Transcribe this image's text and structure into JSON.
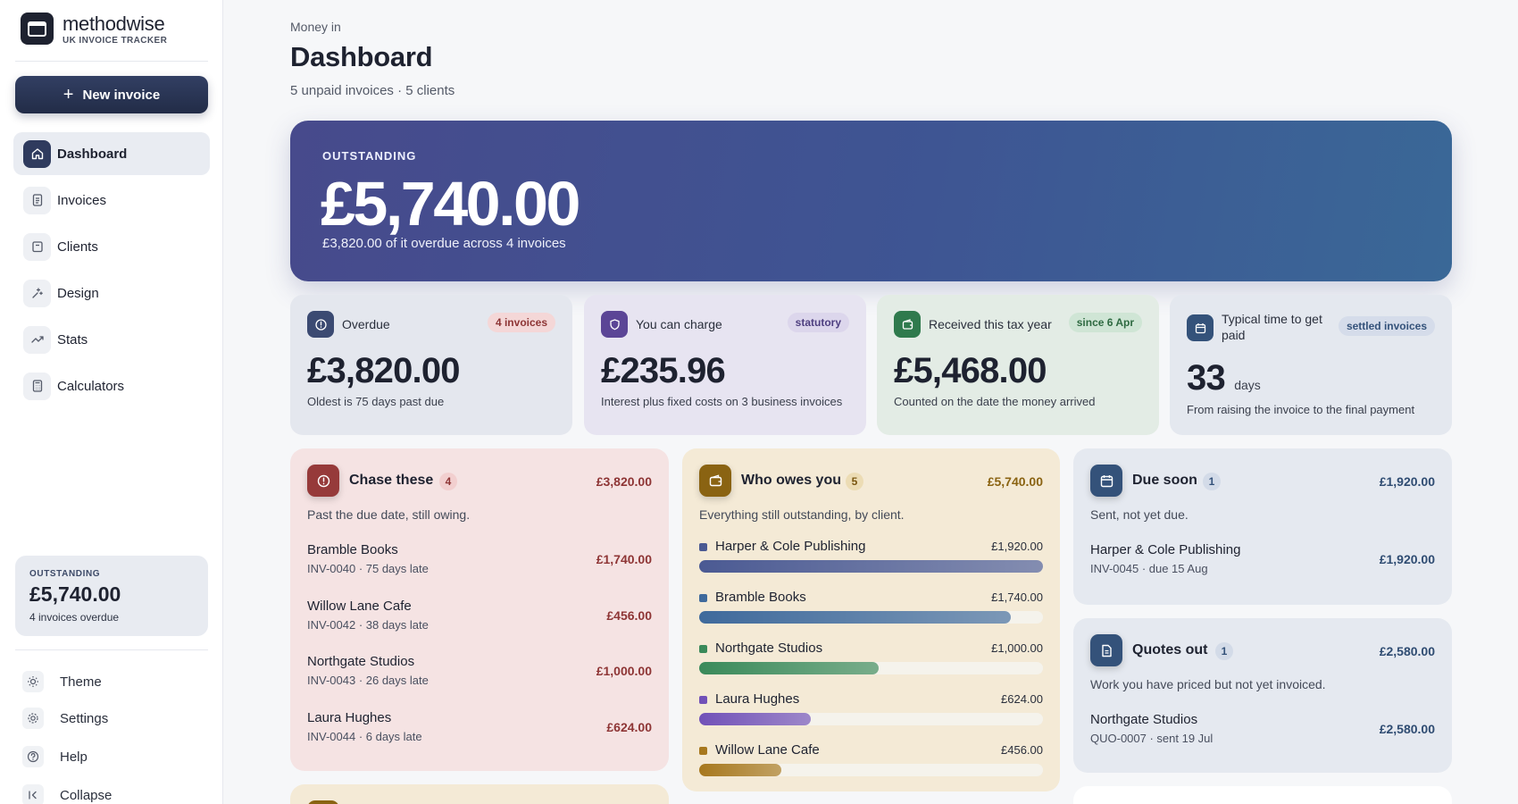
{
  "brand": {
    "name": "methodwise",
    "tagline": "UK INVOICE TRACKER"
  },
  "sidebar": {
    "new_invoice_label": "New invoice",
    "nav": [
      {
        "label": "Dashboard",
        "icon": "home-icon",
        "active": true
      },
      {
        "label": "Invoices",
        "icon": "document-icon"
      },
      {
        "label": "Clients",
        "icon": "folder-icon"
      },
      {
        "label": "Design",
        "icon": "sparkle-icon"
      },
      {
        "label": "Stats",
        "icon": "trend-icon"
      },
      {
        "label": "Calculators",
        "icon": "calculator-icon"
      }
    ],
    "summary": {
      "label": "OUTSTANDING",
      "amount": "£5,740.00",
      "sub": "4 invoices overdue"
    },
    "footer": [
      {
        "label": "Theme",
        "icon": "sun-icon"
      },
      {
        "label": "Settings",
        "icon": "gear-icon"
      },
      {
        "label": "Help",
        "icon": "help-icon"
      },
      {
        "label": "Collapse",
        "icon": "collapse-icon"
      }
    ]
  },
  "header": {
    "eyebrow": "Money in",
    "title": "Dashboard",
    "subtitle": "5 unpaid invoices · 5 clients"
  },
  "hero": {
    "label": "OUTSTANDING",
    "amount": "£5,740.00",
    "sub": "£3,820.00 of it overdue across 4 invoices"
  },
  "stats": [
    {
      "label": "Overdue",
      "badge": "4 invoices",
      "value": "£3,820.00",
      "unit": "",
      "sub": "Oldest is 75 days past due",
      "icon": "clock-icon"
    },
    {
      "label": "You can charge",
      "badge": "statutory",
      "value": "£235.96",
      "unit": "",
      "sub": "Interest plus fixed costs on 3 business invoices",
      "icon": "shield-icon"
    },
    {
      "label": "Received this tax year",
      "badge": "since 6 Apr",
      "value": "£5,468.00",
      "unit": "",
      "sub": "Counted on the date the money arrived",
      "icon": "wallet-icon"
    },
    {
      "label": "Typical time to get paid",
      "badge": "settled invoices",
      "value": "33",
      "unit": "days",
      "sub": "From raising the invoice to the final payment",
      "icon": "calendar-icon"
    }
  ],
  "chase": {
    "title": "Chase these",
    "count": "4",
    "total": "£3,820.00",
    "desc": "Past the due date, still owing.",
    "rows": [
      {
        "name": "Bramble Books",
        "meta": "INV-0040 · 75 days late",
        "amount": "£1,740.00"
      },
      {
        "name": "Willow Lane Cafe",
        "meta": "INV-0042 · 38 days late",
        "amount": "£456.00"
      },
      {
        "name": "Northgate Studios",
        "meta": "INV-0043 · 26 days late",
        "amount": "£1,000.00"
      },
      {
        "name": "Laura Hughes",
        "meta": "INV-0044 · 6 days late",
        "amount": "£624.00"
      }
    ]
  },
  "owes": {
    "title": "Who owes you",
    "count": "5",
    "total": "£5,740.00",
    "desc": "Everything still outstanding, by client.",
    "rows": [
      {
        "name": "Harper & Cole Publishing",
        "amount": "£1,920.00",
        "share": 1.0,
        "color": "#4b5a93"
      },
      {
        "name": "Bramble Books",
        "amount": "£1,740.00",
        "share": 0.906,
        "color": "#3f6a9c"
      },
      {
        "name": "Northgate Studios",
        "amount": "£1,000.00",
        "share": 0.521,
        "color": "#3a8a5a"
      },
      {
        "name": "Laura Hughes",
        "amount": "£624.00",
        "share": 0.325,
        "color": "#7151b8"
      },
      {
        "name": "Willow Lane Cafe",
        "amount": "£456.00",
        "share": 0.238,
        "color": "#a7781e"
      }
    ]
  },
  "due_soon": {
    "title": "Due soon",
    "count": "1",
    "total": "£1,920.00",
    "desc": "Sent, not yet due.",
    "rows": [
      {
        "name": "Harper & Cole Publishing",
        "meta": "INV-0045 · due 15 Aug",
        "amount": "£1,920.00"
      }
    ]
  },
  "quotes": {
    "title": "Quotes out",
    "count": "1",
    "total": "£2,580.00",
    "desc": "Work you have priced but not yet invoiced.",
    "rows": [
      {
        "name": "Northgate Studios",
        "meta": "QUO-0007 · sent 19 Jul",
        "amount": "£2,580.00"
      }
    ]
  },
  "colors": {
    "accent": "#2f3b5e",
    "danger": "#8a2f2f",
    "gold": "#8a6312",
    "blue": "#2f4c72"
  }
}
